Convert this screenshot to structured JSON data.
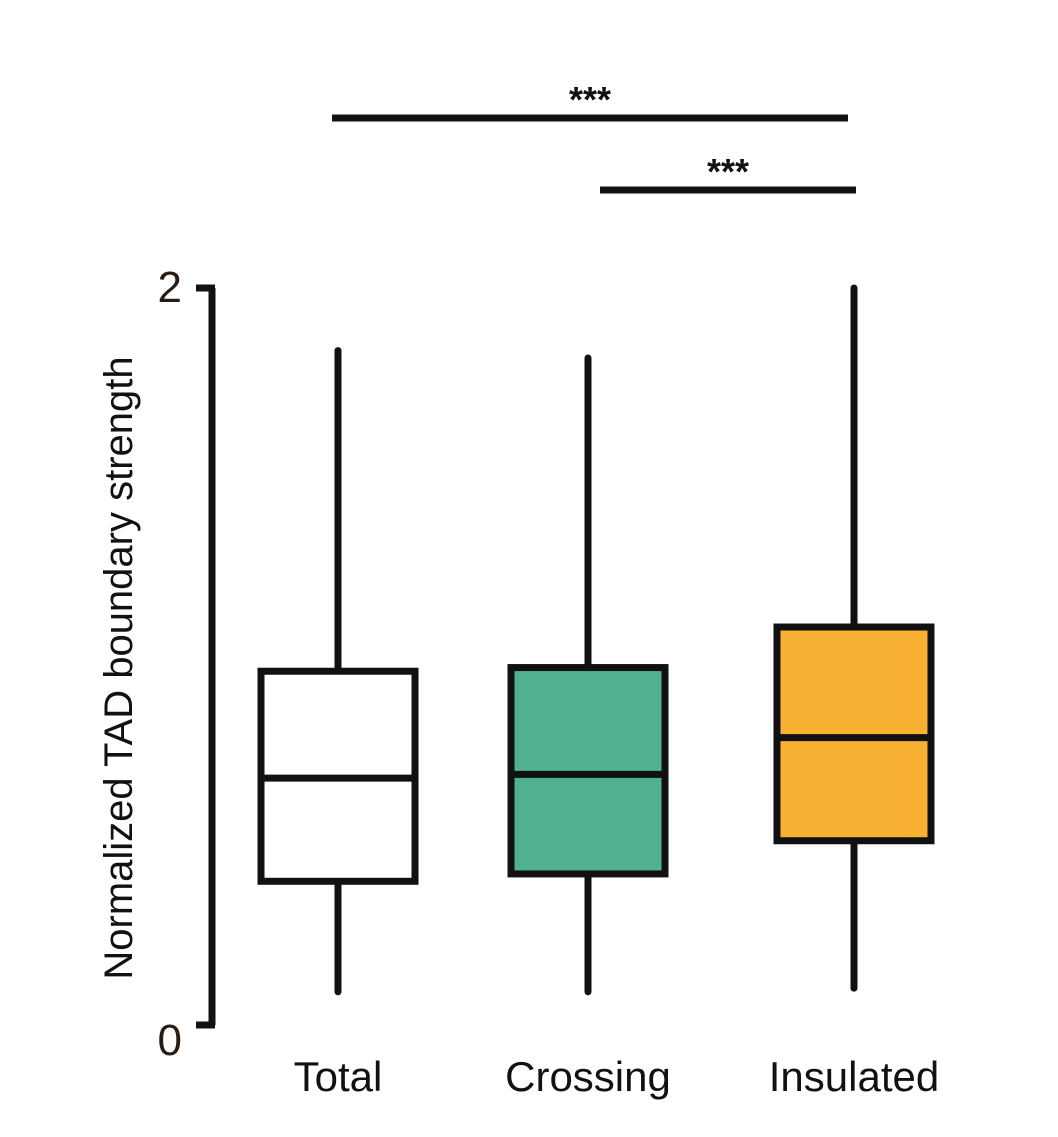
{
  "chart_data": {
    "type": "box",
    "title": "",
    "xlabel": "",
    "ylabel": "Normalized TAD boundary strength",
    "ylim": [
      0,
      2
    ],
    "yticks": [
      {
        "value": 0,
        "label": "0"
      },
      {
        "value": 2,
        "label": "2"
      }
    ],
    "grid": false,
    "legend": "none",
    "categories": [
      "Total",
      "Crossing",
      "Insulated"
    ],
    "boxes": [
      {
        "category": "Total",
        "whisker_low": 0.09,
        "q1": 0.39,
        "median": 0.67,
        "q3": 0.96,
        "whisker_high": 1.83,
        "fill": "#ffffff"
      },
      {
        "category": "Crossing",
        "whisker_low": 0.09,
        "q1": 0.41,
        "median": 0.68,
        "q3": 0.97,
        "whisker_high": 1.81,
        "fill": "#4fb18e"
      },
      {
        "category": "Insulated",
        "whisker_low": 0.1,
        "q1": 0.5,
        "median": 0.78,
        "q3": 1.08,
        "whisker_high": 2.0,
        "fill": "#f8b133"
      }
    ],
    "significance": [
      {
        "from": "Total",
        "to": "Insulated",
        "label": "***"
      },
      {
        "from": "Crossing",
        "to": "Insulated",
        "label": "***"
      }
    ]
  }
}
